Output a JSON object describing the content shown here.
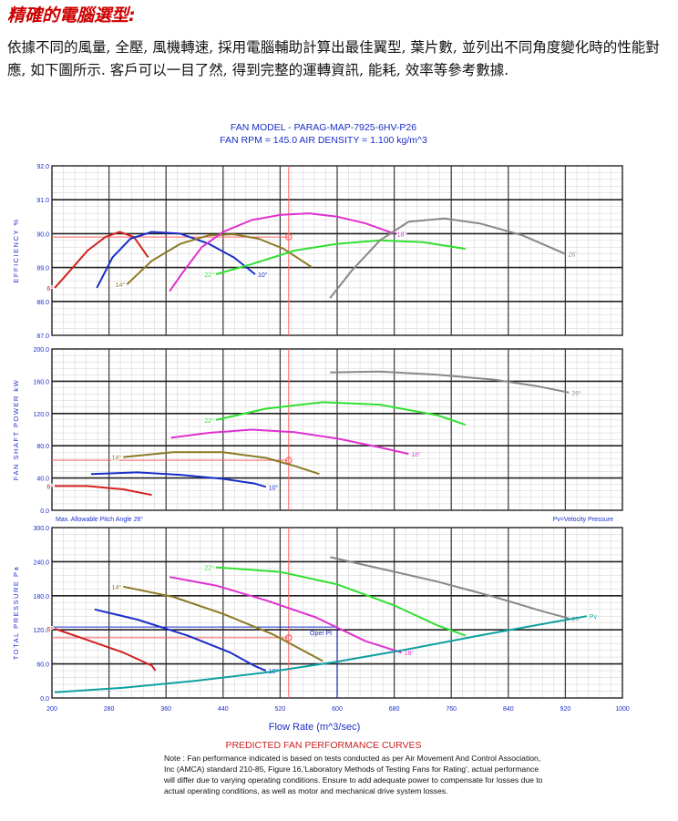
{
  "page": {
    "heading": "精確的電腦選型:",
    "intro": "依據不同的風量, 全壓, 風機轉速, 採用電腦輔助計算出最佳翼型, 葉片數, 並列出不同角度變化時的性能對應, 如下圖所示. 客戶可以一目了然, 得到完整的運轉資訊, 能耗, 效率等參考數據."
  },
  "chart_data": {
    "type": "line",
    "title": "FAN MODEL - PARAG-MAP-7925-6HV-P26",
    "subtitle": "FAN RPM = 145.0  AIR DENSITY = 1.100 kg/m^3",
    "xlabel": "Flow Rate (m^3/sec)",
    "x_ticks": [
      "200",
      "280",
      "360",
      "440",
      "520",
      "600",
      "680",
      "760",
      "840",
      "920",
      "1000"
    ],
    "xlim": [
      200,
      1000
    ],
    "footer_title": "PREDICTED FAN PERFORMANCE CURVES",
    "note": "Note : Fan performance indicated is based on tests conducted as per Air Movement And Control Association, Inc (AMCA) standard 210-85, Figure 16,'Laboratory Methods of Testing Fans for Rating', actual performance will differ due to varying operating conditions. Ensure to add adequate power to compensate for losses due to actual operating conditions, as well as motor and mechanical drive system losses.",
    "colors": {
      "6": "#d42020",
      "10": "#1a2ec8",
      "14": "#8a7a24",
      "18": "#e030d0",
      "22": "#30e030",
      "26": "#888888",
      "velocity": "#10a0a0",
      "operating": "#ff6060",
      "operating_frame": "#1a2ec8"
    },
    "panels": [
      {
        "id": "efficiency",
        "ylabel": "EFFICIENCY %",
        "ylim": [
          87,
          92
        ],
        "y_ticks": [
          "92.0",
          "91.0",
          "90.0",
          "89.0",
          "88.0",
          "87.0"
        ],
        "series": [
          {
            "name": "6°",
            "color_key": "6",
            "points": [
              [
                204,
                88.4
              ],
              [
                225,
                88.9
              ],
              [
                250,
                89.5
              ],
              [
                275,
                89.9
              ],
              [
                295,
                90.05
              ],
              [
                315,
                89.9
              ],
              [
                335,
                89.3
              ]
            ]
          },
          {
            "name": "10°",
            "color_key": "10",
            "points": [
              [
                263,
                88.4
              ],
              [
                285,
                89.3
              ],
              [
                310,
                89.85
              ],
              [
                340,
                90.05
              ],
              [
                380,
                90.0
              ],
              [
                420,
                89.7
              ],
              [
                455,
                89.3
              ],
              [
                485,
                88.8
              ]
            ]
          },
          {
            "name": "14°",
            "color_key": "14",
            "points": [
              [
                305,
                88.5
              ],
              [
                340,
                89.2
              ],
              [
                380,
                89.7
              ],
              [
                420,
                89.95
              ],
              [
                455,
                89.98
              ],
              [
                490,
                89.85
              ],
              [
                525,
                89.55
              ],
              [
                565,
                89.0
              ]
            ]
          },
          {
            "name": "18°",
            "color_key": "18",
            "points": [
              [
                365,
                88.3
              ],
              [
                385,
                88.9
              ],
              [
                410,
                89.6
              ],
              [
                440,
                90.05
              ],
              [
                480,
                90.4
              ],
              [
                520,
                90.55
              ],
              [
                560,
                90.6
              ],
              [
                600,
                90.5
              ],
              [
                640,
                90.3
              ],
              [
                680,
                90.0
              ]
            ]
          },
          {
            "name": "22°",
            "color_key": "22",
            "points": [
              [
                430,
                88.8
              ],
              [
                480,
                89.1
              ],
              [
                540,
                89.5
              ],
              [
                600,
                89.7
              ],
              [
                660,
                89.8
              ],
              [
                720,
                89.75
              ],
              [
                780,
                89.55
              ]
            ]
          },
          {
            "name": "26°",
            "color_key": "26",
            "points": [
              [
                590,
                88.1
              ],
              [
                620,
                88.9
              ],
              [
                660,
                89.8
              ],
              [
                700,
                90.35
              ],
              [
                750,
                90.45
              ],
              [
                800,
                90.3
              ],
              [
                860,
                89.95
              ],
              [
                920,
                89.4
              ]
            ]
          }
        ],
        "operating_point": {
          "x": 532,
          "y": 89.9
        }
      },
      {
        "id": "power",
        "ylabel": "FAN SHAFT POWER kW",
        "ylim": [
          0,
          200
        ],
        "y_ticks": [
          "200.0",
          "160.0",
          "120.0",
          "80.0",
          "40.0",
          "0.0"
        ],
        "series": [
          {
            "name": "6°",
            "color_key": "6",
            "points": [
              [
                204,
                30
              ],
              [
                250,
                30
              ],
              [
                300,
                26
              ],
              [
                340,
                19
              ]
            ]
          },
          {
            "name": "10°",
            "color_key": "10",
            "points": [
              [
                255,
                45
              ],
              [
                320,
                47
              ],
              [
                380,
                44
              ],
              [
                440,
                39
              ],
              [
                485,
                33
              ],
              [
                500,
                29
              ]
            ]
          },
          {
            "name": "14°",
            "color_key": "14",
            "points": [
              [
                300,
                66
              ],
              [
                370,
                72
              ],
              [
                440,
                72
              ],
              [
                500,
                65
              ],
              [
                540,
                55
              ],
              [
                575,
                45
              ]
            ]
          },
          {
            "name": "18°",
            "color_key": "18",
            "points": [
              [
                367,
                90
              ],
              [
                420,
                96
              ],
              [
                480,
                100
              ],
              [
                540,
                97
              ],
              [
                600,
                89
              ],
              [
                660,
                78
              ],
              [
                700,
                70
              ]
            ]
          },
          {
            "name": "22°",
            "color_key": "22",
            "points": [
              [
                430,
                112
              ],
              [
                500,
                126
              ],
              [
                580,
                134
              ],
              [
                660,
                131
              ],
              [
                740,
                118
              ],
              [
                780,
                106
              ]
            ]
          },
          {
            "name": "26°",
            "color_key": "26",
            "points": [
              [
                590,
                171
              ],
              [
                660,
                172
              ],
              [
                740,
                168
              ],
              [
                820,
                162
              ],
              [
                880,
                154
              ],
              [
                925,
                146
              ]
            ]
          }
        ],
        "operating_point": {
          "x": 532,
          "y": 62
        },
        "left_note": "Max. Allowable Pitch Angle 26°",
        "right_note": "Pv=Velocity Pressure"
      },
      {
        "id": "pressure",
        "ylabel": "TOTAL PRESSURE Pa",
        "ylim": [
          0,
          300
        ],
        "y_ticks": [
          "300.0",
          "240.0",
          "180.0",
          "120.0",
          "60.0",
          "0.0"
        ],
        "series": [
          {
            "name": "6°",
            "color_key": "6",
            "points": [
              [
                204,
                122
              ],
              [
                250,
                102
              ],
              [
                300,
                80
              ],
              [
                340,
                57
              ],
              [
                345,
                48
              ]
            ]
          },
          {
            "name": "10°",
            "color_key": "10",
            "points": [
              [
                260,
                156
              ],
              [
                320,
                138
              ],
              [
                390,
                110
              ],
              [
                450,
                80
              ],
              [
                485,
                56
              ],
              [
                500,
                48
              ]
            ]
          },
          {
            "name": "14°",
            "color_key": "14",
            "points": [
              [
                300,
                196
              ],
              [
                370,
                178
              ],
              [
                440,
                148
              ],
              [
                510,
                112
              ],
              [
                565,
                75
              ],
              [
                580,
                65
              ]
            ]
          },
          {
            "name": "18°",
            "color_key": "18",
            "points": [
              [
                365,
                213
              ],
              [
                430,
                198
              ],
              [
                500,
                172
              ],
              [
                570,
                142
              ],
              [
                640,
                100
              ],
              [
                690,
                80
              ]
            ]
          },
          {
            "name": "22°",
            "color_key": "22",
            "points": [
              [
                430,
                230
              ],
              [
                520,
                222
              ],
              [
                600,
                200
              ],
              [
                680,
                163
              ],
              [
                740,
                128
              ],
              [
                780,
                110
              ]
            ]
          },
          {
            "name": "26°",
            "color_key": "26",
            "points": [
              [
                590,
                248
              ],
              [
                660,
                228
              ],
              [
                740,
                205
              ],
              [
                820,
                178
              ],
              [
                890,
                152
              ],
              [
                925,
                140
              ]
            ]
          },
          {
            "name": "Pv",
            "color_key": "velocity",
            "points": [
              [
                204,
                10
              ],
              [
                300,
                18
              ],
              [
                400,
                30
              ],
              [
                500,
                45
              ],
              [
                600,
                64
              ],
              [
                700,
                86
              ],
              [
                800,
                110
              ],
              [
                900,
                133
              ],
              [
                950,
                144
              ]
            ]
          }
        ],
        "operating_point": {
          "x": 532,
          "y": 106
        },
        "oper_label": "Oper Pt",
        "oper_frame": {
          "x": 600,
          "y": 125
        }
      }
    ]
  }
}
